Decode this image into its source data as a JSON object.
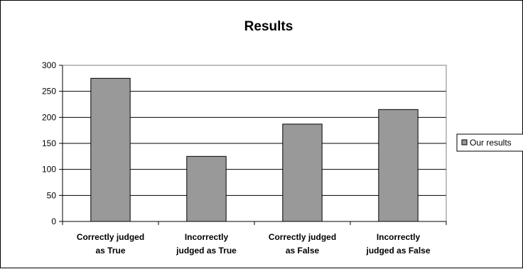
{
  "chart_data": {
    "type": "bar",
    "title": "Results",
    "categories": [
      [
        "Correctly judged",
        "as True"
      ],
      [
        "Incorrectly",
        "judged as True"
      ],
      [
        "Correctly judged",
        "as False"
      ],
      [
        "Incorrectly",
        "judged as False"
      ]
    ],
    "series": [
      {
        "name": "Our results",
        "values": [
          275,
          125,
          187,
          215
        ],
        "color": "#999999"
      }
    ],
    "ylim": [
      0,
      300
    ],
    "yticks": [
      0,
      50,
      100,
      150,
      200,
      250,
      300
    ],
    "grid": true,
    "legend": "right",
    "plot_background": "#ffffff",
    "gridline_color": "#000000",
    "bar_outline_color": "#000000"
  }
}
